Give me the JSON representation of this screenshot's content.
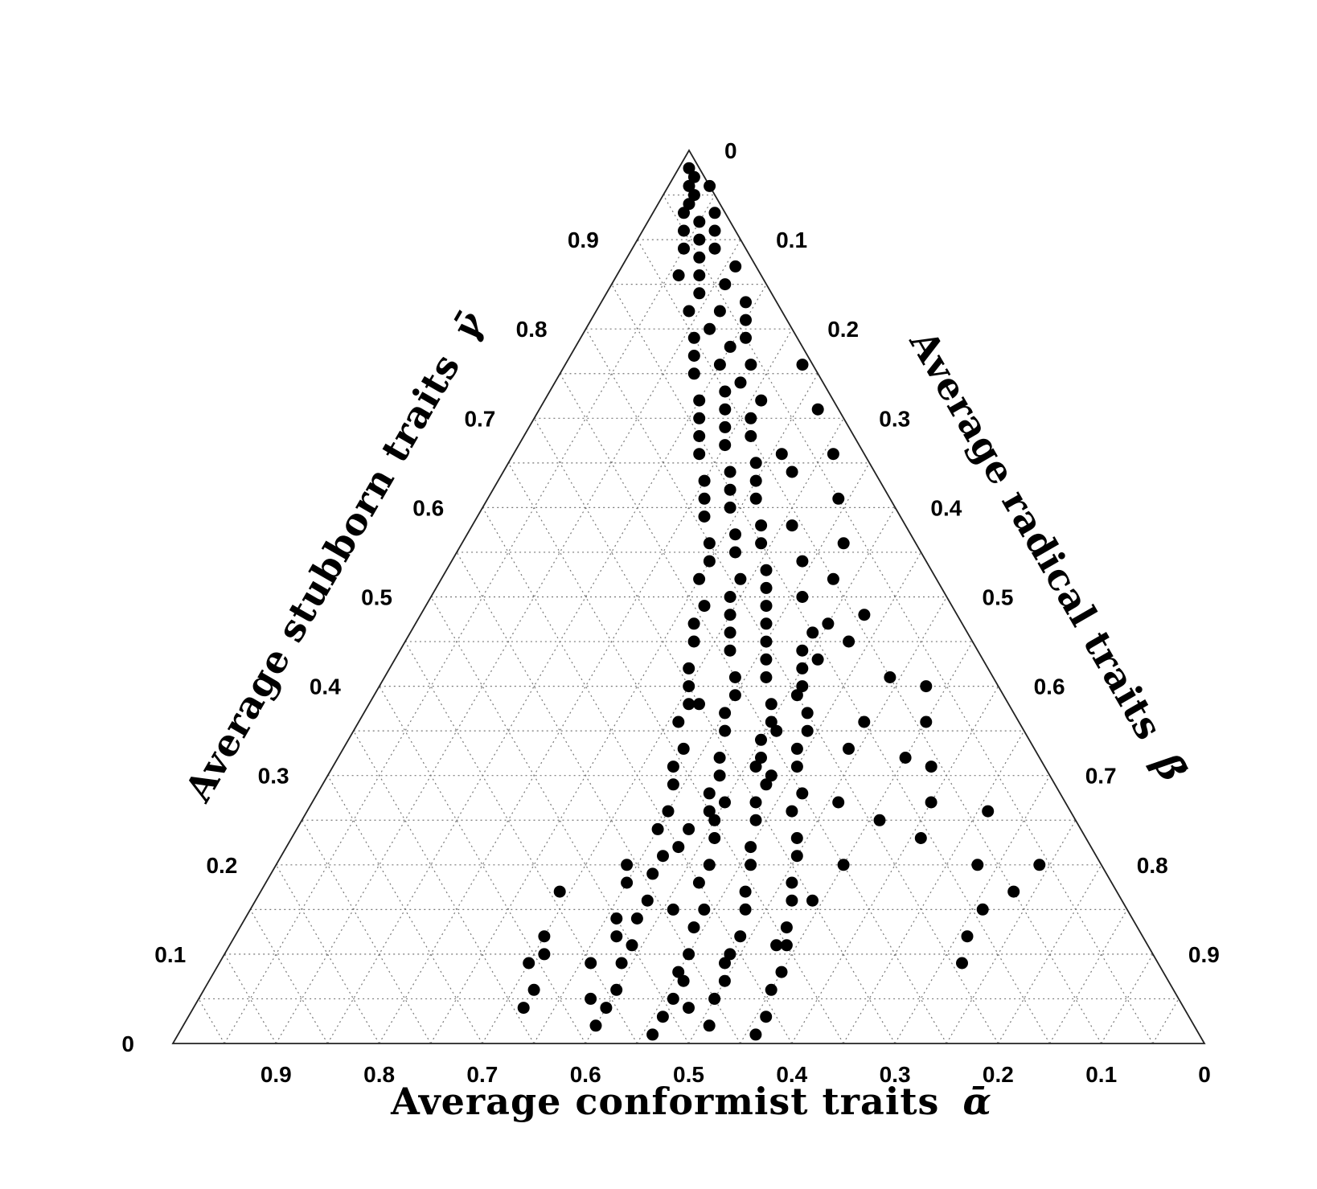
{
  "chart_data": {
    "type": "scatter",
    "subtype": "ternary",
    "axes": {
      "bottom": {
        "label": "Average conformist traits",
        "symbol": "ᾱ",
        "ticks": [
          "0.9",
          "0.8",
          "0.7",
          "0.6",
          "0.5",
          "0.4",
          "0.3",
          "0.2",
          "0.1",
          "0"
        ]
      },
      "left": {
        "label": "Average stubborn traits",
        "symbol": "γ̄",
        "ticks": [
          "0",
          "0.1",
          "0.2",
          "0.3",
          "0.4",
          "0.5",
          "0.6",
          "0.7",
          "0.8",
          "0.9"
        ]
      },
      "right": {
        "label": "Average radical traits",
        "symbol": "β̄",
        "ticks": [
          "0",
          "0.1",
          "0.2",
          "0.3",
          "0.4",
          "0.5",
          "0.6",
          "0.7",
          "0.8",
          "0.9"
        ]
      }
    },
    "grid": true,
    "point_color": "#000000",
    "points_alpha_gamma": [
      [
        0.01,
        0.98
      ],
      [
        0.01,
        0.97
      ],
      [
        0.02,
        0.96
      ],
      [
        0.0,
        0.96
      ],
      [
        0.02,
        0.95
      ],
      [
        0.03,
        0.94
      ],
      [
        0.04,
        0.93
      ],
      [
        0.01,
        0.93
      ],
      [
        0.03,
        0.92
      ],
      [
        0.05,
        0.91
      ],
      [
        0.02,
        0.91
      ],
      [
        0.04,
        0.9
      ],
      [
        0.06,
        0.89
      ],
      [
        0.03,
        0.89
      ],
      [
        0.05,
        0.88
      ],
      [
        0.02,
        0.87
      ],
      [
        0.06,
        0.86
      ],
      [
        0.08,
        0.86
      ],
      [
        0.04,
        0.85
      ],
      [
        0.07,
        0.84
      ],
      [
        0.03,
        0.83
      ],
      [
        0.09,
        0.82
      ],
      [
        0.06,
        0.82
      ],
      [
        0.04,
        0.81
      ],
      [
        0.08,
        0.8
      ],
      [
        0.1,
        0.79
      ],
      [
        0.05,
        0.79
      ],
      [
        0.07,
        0.78
      ],
      [
        0.11,
        0.77
      ],
      [
        0.09,
        0.76
      ],
      [
        0.06,
        0.76
      ],
      [
        0.12,
        0.75
      ],
      [
        0.08,
        0.74
      ],
      [
        0.1,
        0.73
      ],
      [
        0.13,
        0.72
      ],
      [
        0.07,
        0.72
      ],
      [
        0.11,
        0.71
      ],
      [
        0.14,
        0.7
      ],
      [
        0.09,
        0.7
      ],
      [
        0.12,
        0.69
      ],
      [
        0.15,
        0.68
      ],
      [
        0.1,
        0.68
      ],
      [
        0.13,
        0.67
      ],
      [
        0.08,
        0.66
      ],
      [
        0.16,
        0.66
      ],
      [
        0.11,
        0.65
      ],
      [
        0.14,
        0.64
      ],
      [
        0.17,
        0.63
      ],
      [
        0.12,
        0.63
      ],
      [
        0.15,
        0.62
      ],
      [
        0.18,
        0.61
      ],
      [
        0.13,
        0.61
      ],
      [
        0.16,
        0.6
      ],
      [
        0.19,
        0.59
      ],
      [
        0.14,
        0.58
      ],
      [
        0.11,
        0.58
      ],
      [
        0.17,
        0.57
      ],
      [
        0.2,
        0.56
      ],
      [
        0.15,
        0.56
      ],
      [
        0.18,
        0.55
      ],
      [
        0.21,
        0.54
      ],
      [
        0.12,
        0.54
      ],
      [
        0.16,
        0.53
      ],
      [
        0.19,
        0.52
      ],
      [
        0.23,
        0.52
      ],
      [
        0.17,
        0.51
      ],
      [
        0.21,
        0.5
      ],
      [
        0.14,
        0.5
      ],
      [
        0.24,
        0.49
      ],
      [
        0.18,
        0.49
      ],
      [
        0.22,
        0.48
      ],
      [
        0.19,
        0.47
      ],
      [
        0.26,
        0.47
      ],
      [
        0.15,
        0.46
      ],
      [
        0.23,
        0.46
      ],
      [
        0.2,
        0.45
      ],
      [
        0.27,
        0.45
      ],
      [
        0.17,
        0.44
      ],
      [
        0.24,
        0.44
      ],
      [
        0.21,
        0.43
      ],
      [
        0.29,
        0.42
      ],
      [
        0.18,
        0.42
      ],
      [
        0.25,
        0.41
      ],
      [
        0.22,
        0.41
      ],
      [
        0.3,
        0.4
      ],
      [
        0.19,
        0.4
      ],
      [
        0.26,
        0.39
      ],
      [
        0.23,
        0.38
      ],
      [
        0.31,
        0.38
      ],
      [
        0.2,
        0.37
      ],
      [
        0.28,
        0.37
      ],
      [
        0.24,
        0.36
      ],
      [
        0.33,
        0.36
      ],
      [
        0.21,
        0.35
      ],
      [
        0.29,
        0.35
      ],
      [
        0.26,
        0.34
      ],
      [
        0.34,
        0.33
      ],
      [
        0.23,
        0.33
      ],
      [
        0.31,
        0.32
      ],
      [
        0.27,
        0.32
      ],
      [
        0.36,
        0.31
      ],
      [
        0.24,
        0.31
      ],
      [
        0.32,
        0.3
      ],
      [
        0.28,
        0.29
      ],
      [
        0.37,
        0.29
      ],
      [
        0.25,
        0.28
      ],
      [
        0.34,
        0.28
      ],
      [
        0.3,
        0.27
      ],
      [
        0.39,
        0.26
      ],
      [
        0.27,
        0.26
      ],
      [
        0.35,
        0.25
      ],
      [
        0.31,
        0.25
      ],
      [
        0.41,
        0.24
      ],
      [
        0.28,
        0.23
      ],
      [
        0.36,
        0.23
      ],
      [
        0.33,
        0.22
      ],
      [
        0.42,
        0.21
      ],
      [
        0.29,
        0.21
      ],
      [
        0.38,
        0.2
      ],
      [
        0.34,
        0.2
      ],
      [
        0.44,
        0.19
      ],
      [
        0.31,
        0.18
      ],
      [
        0.4,
        0.18
      ],
      [
        0.36,
        0.17
      ],
      [
        0.46,
        0.16
      ],
      [
        0.32,
        0.16
      ],
      [
        0.41,
        0.15
      ],
      [
        0.37,
        0.15
      ],
      [
        0.48,
        0.14
      ],
      [
        0.34,
        0.13
      ],
      [
        0.43,
        0.13
      ],
      [
        0.39,
        0.12
      ],
      [
        0.5,
        0.11
      ],
      [
        0.35,
        0.11
      ],
      [
        0.45,
        0.1
      ],
      [
        0.41,
        0.1
      ],
      [
        0.52,
        0.09
      ],
      [
        0.37,
        0.08
      ],
      [
        0.47,
        0.08
      ],
      [
        0.43,
        0.07
      ],
      [
        0.54,
        0.06
      ],
      [
        0.39,
        0.06
      ],
      [
        0.49,
        0.05
      ],
      [
        0.45,
        0.05
      ],
      [
        0.56,
        0.04
      ],
      [
        0.41,
        0.03
      ],
      [
        0.51,
        0.03
      ],
      [
        0.47,
        0.02
      ],
      [
        0.58,
        0.02
      ],
      [
        0.43,
        0.01
      ],
      [
        0.53,
        0.01
      ],
      [
        0.08,
        0.64
      ],
      [
        0.09,
        0.48
      ],
      [
        0.12,
        0.45
      ],
      [
        0.1,
        0.41
      ],
      [
        0.3,
        0.38
      ],
      [
        0.15,
        0.36
      ],
      [
        0.18,
        0.33
      ],
      [
        0.13,
        0.32
      ],
      [
        0.27,
        0.3
      ],
      [
        0.22,
        0.27
      ],
      [
        0.35,
        0.26
      ],
      [
        0.19,
        0.25
      ],
      [
        0.4,
        0.22
      ],
      [
        0.25,
        0.2
      ],
      [
        0.47,
        0.18
      ],
      [
        0.3,
        0.16
      ],
      [
        0.44,
        0.15
      ],
      [
        0.58,
        0.12
      ],
      [
        0.36,
        0.11
      ],
      [
        0.61,
        0.09
      ],
      [
        0.47,
        0.07
      ],
      [
        0.51,
        0.12
      ],
      [
        0.62,
        0.06
      ],
      [
        0.55,
        0.09
      ],
      [
        0.64,
        0.04
      ],
      [
        0.48,
        0.04
      ],
      [
        0.57,
        0.05
      ],
      [
        0.59,
        0.1
      ],
      [
        0.42,
        0.09
      ],
      [
        0.5,
        0.14
      ],
      [
        0.54,
        0.17
      ],
      [
        0.46,
        0.2
      ],
      [
        0.38,
        0.24
      ],
      [
        0.33,
        0.27
      ],
      [
        0.28,
        0.31
      ],
      [
        0.24,
        0.35
      ],
      [
        0.2,
        0.39
      ],
      [
        0.16,
        0.43
      ],
      [
        0.13,
        0.47
      ],
      [
        0.1,
        0.52
      ],
      [
        0.07,
        0.56
      ],
      [
        0.05,
        0.61
      ],
      [
        0.03,
        0.66
      ],
      [
        0.02,
        0.71
      ],
      [
        0.01,
        0.76
      ],
      [
        0.09,
        0.36
      ],
      [
        0.13,
        0.27
      ],
      [
        0.16,
        0.23
      ],
      [
        0.11,
        0.31
      ],
      [
        0.08,
        0.26
      ],
      [
        0.12,
        0.2
      ],
      [
        0.1,
        0.17
      ],
      [
        0.06,
        0.2
      ],
      [
        0.14,
        0.15
      ],
      [
        0.17,
        0.12
      ],
      [
        0.19,
        0.09
      ],
      [
        0.07,
        0.4
      ]
    ]
  }
}
